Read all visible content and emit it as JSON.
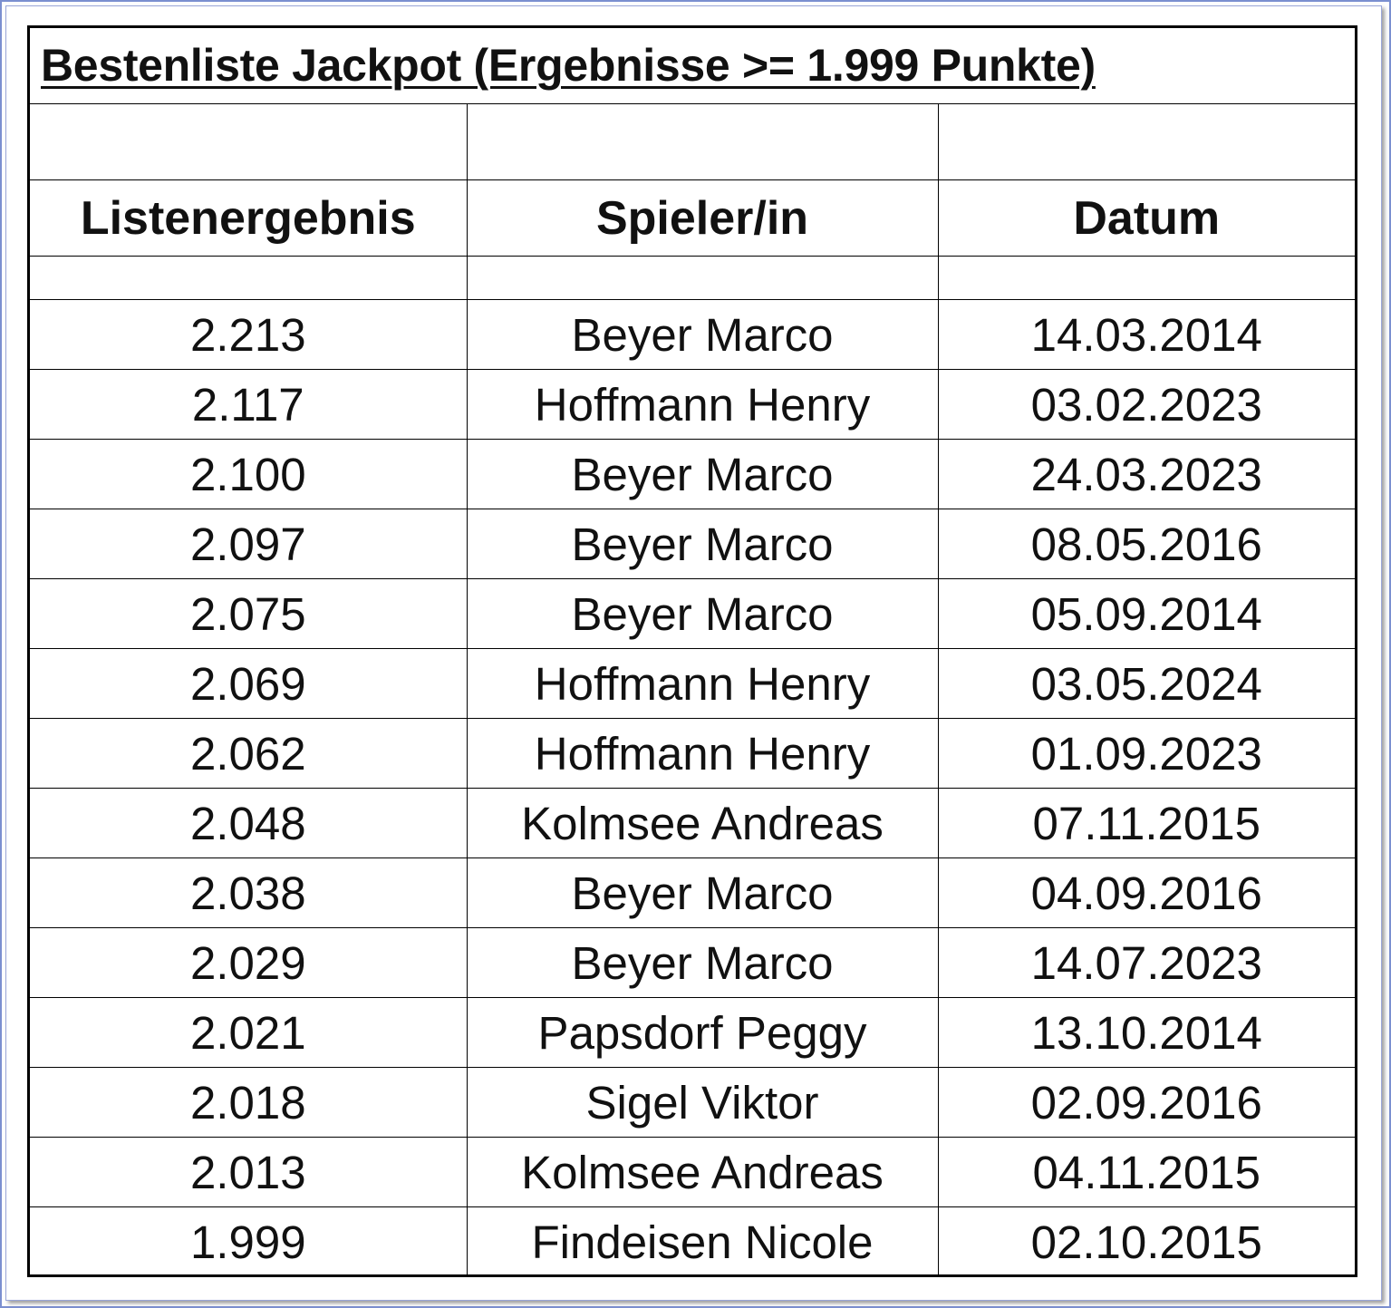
{
  "title": "Bestenliste Jackpot (Ergebnisse >= 1.999 Punkte)",
  "columns": [
    "Listenergebnis",
    "Spieler/in",
    "Datum"
  ],
  "rows": [
    {
      "score": "2.213",
      "player": "Beyer Marco",
      "date": "14.03.2014"
    },
    {
      "score": "2.117",
      "player": "Hoffmann Henry",
      "date": "03.02.2023"
    },
    {
      "score": "2.100",
      "player": "Beyer Marco",
      "date": "24.03.2023"
    },
    {
      "score": "2.097",
      "player": "Beyer Marco",
      "date": "08.05.2016"
    },
    {
      "score": "2.075",
      "player": "Beyer Marco",
      "date": "05.09.2014"
    },
    {
      "score": "2.069",
      "player": "Hoffmann Henry",
      "date": "03.05.2024"
    },
    {
      "score": "2.062",
      "player": "Hoffmann Henry",
      "date": "01.09.2023"
    },
    {
      "score": "2.048",
      "player": "Kolmsee Andreas",
      "date": "07.11.2015"
    },
    {
      "score": "2.038",
      "player": "Beyer Marco",
      "date": "04.09.2016"
    },
    {
      "score": "2.029",
      "player": "Beyer Marco",
      "date": "14.07.2023"
    },
    {
      "score": "2.021",
      "player": "Papsdorf Peggy",
      "date": "13.10.2014"
    },
    {
      "score": "2.018",
      "player": "Sigel Viktor",
      "date": "02.09.2016"
    },
    {
      "score": "2.013",
      "player": "Kolmsee Andreas",
      "date": "04.11.2015"
    },
    {
      "score": "1.999",
      "player": "Findeisen Nicole",
      "date": "02.10.2015"
    }
  ]
}
